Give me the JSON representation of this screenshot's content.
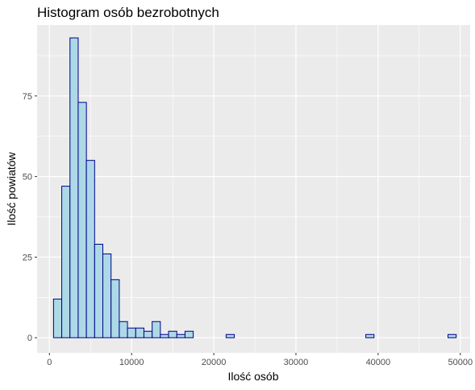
{
  "chart_data": {
    "type": "bar",
    "title": "Histogram osób bezrobotnych",
    "xlabel": "Ilość osób",
    "ylabel": "Ilość powiatów",
    "xlim": [
      -1500,
      51200
    ],
    "ylim": [
      -4.7,
      97
    ],
    "x_ticks": [
      0,
      10000,
      20000,
      30000,
      40000,
      50000
    ],
    "x_tick_labels": [
      "0",
      "10000",
      "20000",
      "30000",
      "40000",
      "50000"
    ],
    "y_ticks": [
      0,
      25,
      50,
      75
    ],
    "y_tick_labels": [
      "0",
      "25",
      "50",
      "75"
    ],
    "grid": true,
    "bar_fill": "#add8e6",
    "bar_outline": "#00008b",
    "panel_background": "#ebebeb",
    "bin_width": 1000,
    "bin_start": 500,
    "values": [
      12,
      47,
      93,
      73,
      55,
      29,
      26,
      18,
      5,
      3,
      3,
      2,
      5,
      1,
      2,
      1,
      2,
      0,
      0,
      0,
      0,
      1,
      0,
      0,
      0,
      0,
      0,
      0,
      0,
      0,
      0,
      0,
      0,
      0,
      0,
      0,
      0,
      0,
      1,
      0,
      0,
      0,
      0,
      0,
      0,
      0,
      0,
      0,
      1
    ]
  }
}
